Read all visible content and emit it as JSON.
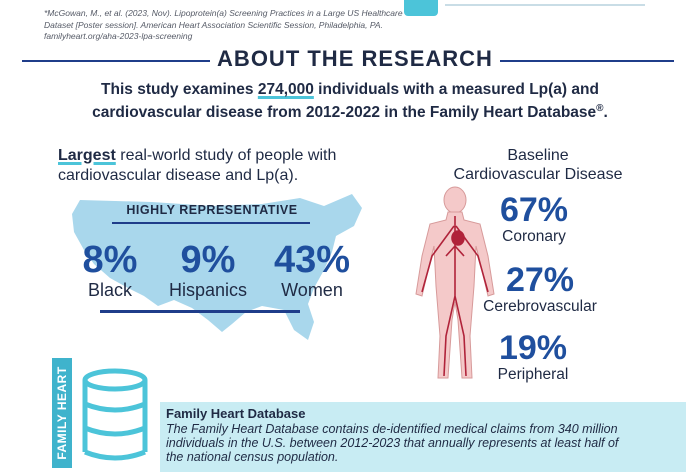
{
  "citation": {
    "line1": "*McGowan, M., et al. (2023, Nov). Lipoprotein(a) Screening Practices in a Large US Healthcare",
    "line2": "Dataset [Poster session]. American Heart Association Scientific Session, Philadelphia, PA.",
    "line3": "familyheart.org/aha-2023-lpa-screening"
  },
  "section_title": "ABOUT THE RESEARCH",
  "intro": {
    "before": "This study examines ",
    "count": "274,000",
    "after_line1": " individuals with a measured Lp(a) and",
    "line2": "cardiovascular disease from 2012-2022 in the Family Heart Database",
    "reg": "®",
    "end": "."
  },
  "largest": {
    "bold": "Largest",
    "rest": " real-world study of people with",
    "line2": "cardiovascular disease and Lp(a)."
  },
  "representative": {
    "label": "HIGHLY REPRESENTATIVE",
    "stats": [
      {
        "value": "8%",
        "label": "Black"
      },
      {
        "value": "9%",
        "label": "Hispanics"
      },
      {
        "value": "43%",
        "label": "Women"
      }
    ]
  },
  "baseline": {
    "title_line1": "Baseline",
    "title_line2": "Cardiovascular Disease",
    "items": [
      {
        "value": "67%",
        "label": "Coronary"
      },
      {
        "value": "27%",
        "label": "Cerebrovascular"
      },
      {
        "value": "19%",
        "label": "Peripheral"
      }
    ]
  },
  "database": {
    "vertical_label": "FAMILY HEART",
    "title": "Family Heart Database",
    "description": "The Family Heart Database contains de-identified medical claims from 340 million individuals in the U.S. between 2012-2023 that annually represents at least half of the national census population."
  },
  "colors": {
    "navy": "#1f2a44",
    "blue_stat": "#1f4f9e",
    "teal": "#4cc4d9",
    "map_blue": "#9fd3ea",
    "band": "#c8ecf3",
    "body_pink": "#f4c9c9",
    "artery_red": "#b0233a"
  }
}
